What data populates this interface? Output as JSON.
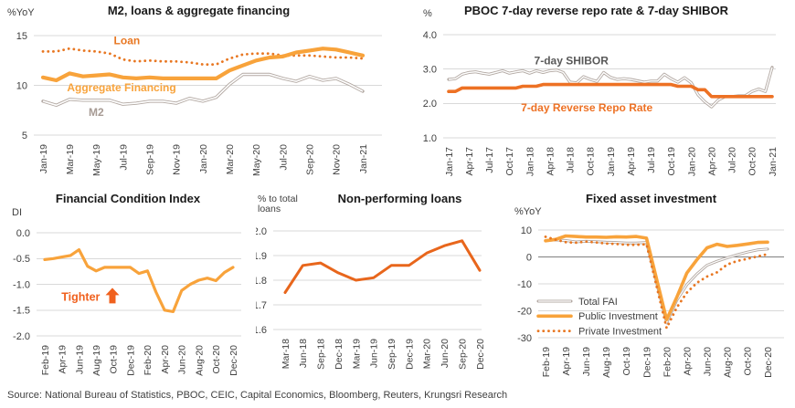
{
  "source": "Source: National Bureau of Statistics, PBOC, CEIC, Capital Economics, Bloomberg, Reuters, Krungsri Research",
  "colors": {
    "amber": "#F8A33B",
    "dark_orange": "#E87722",
    "npl_orange": "#E8661C",
    "repo_orange": "#ED7124",
    "tighter_orange": "#F0611E",
    "gray_line": "#B2A8A2",
    "grid": "#D9D9D9",
    "zero_line": "#808080",
    "tick_text": "#404040",
    "title_text": "#1A1A1A"
  },
  "chart_data": [
    {
      "id": "m2-loans-aggregate-financing",
      "type": "line",
      "title": "M2, loans & aggregate financing",
      "unit": "%YoY",
      "ylim": [
        5,
        15
      ],
      "y_ticks": [
        [
          15,
          "15"
        ],
        [
          10,
          "10"
        ],
        [
          5,
          "5"
        ]
      ],
      "label_every": 2,
      "categories": [
        "Jan-19",
        "Feb-19",
        "Mar-19",
        "Apr-19",
        "May-19",
        "Jun-19",
        "Jul-19",
        "Aug-19",
        "Sep-19",
        "Oct-19",
        "Nov-19",
        "Dec-19",
        "Jan-20",
        "Feb-20",
        "Mar-20",
        "Apr-20",
        "May-20",
        "Jun-20",
        "Jul-20",
        "Aug-20",
        "Sep-20",
        "Oct-20",
        "Nov-20",
        "Dec-20",
        "Jan-21"
      ],
      "series": [
        {
          "name": "Loan",
          "style": "dotted",
          "color": "#E87722",
          "width": 2.8,
          "values": [
            13.4,
            13.4,
            13.7,
            13.5,
            13.4,
            13.2,
            12.6,
            12.4,
            12.5,
            12.4,
            12.4,
            12.3,
            12.1,
            12.1,
            12.7,
            13.1,
            13.2,
            13.2,
            13.0,
            13.0,
            13.0,
            12.9,
            12.8,
            12.8,
            12.7
          ]
        },
        {
          "name": "Aggregate Financing",
          "style": "solid",
          "color": "#F8A33B",
          "width": 4.2,
          "values": [
            10.8,
            10.5,
            11.2,
            10.9,
            11.0,
            11.1,
            10.8,
            10.7,
            10.8,
            10.7,
            10.7,
            10.7,
            10.7,
            10.7,
            11.5,
            12.0,
            12.5,
            12.8,
            12.9,
            13.3,
            13.5,
            13.7,
            13.6,
            13.3,
            13.0
          ]
        },
        {
          "name": "M2",
          "style": "double",
          "color": "#B2A8A2",
          "width": 3.4,
          "values": [
            8.4,
            8.0,
            8.6,
            8.5,
            8.5,
            8.5,
            8.1,
            8.2,
            8.4,
            8.4,
            8.2,
            8.7,
            8.4,
            8.8,
            10.1,
            11.1,
            11.1,
            11.1,
            10.7,
            10.4,
            10.9,
            10.5,
            10.7,
            10.1,
            9.4
          ]
        }
      ],
      "annotations": [
        {
          "text": "Loan",
          "color": "#E87722",
          "x": 6.3,
          "y": 14.5,
          "size": 12
        },
        {
          "text": "Aggregate Financing",
          "color": "#F8A33B",
          "x": 5.9,
          "y": 9.75,
          "size": 12
        },
        {
          "text": "M2",
          "color": "#A79B94",
          "x": 4.0,
          "y": 7.3,
          "size": 12
        }
      ]
    },
    {
      "id": "pboc-repo-shibor",
      "type": "line",
      "title": "PBOC 7-day reverse repo rate & 7-day SHIBOR",
      "unit": "%",
      "ylim": [
        1.0,
        4.0
      ],
      "y_ticks": [
        [
          4.0,
          "4.0"
        ],
        [
          3.0,
          "3.0"
        ],
        [
          2.0,
          "2.0"
        ],
        [
          1.0,
          "1.0"
        ]
      ],
      "label_every": 3,
      "categories": [
        "Jan-17",
        "Feb-17",
        "Mar-17",
        "Apr-17",
        "May-17",
        "Jun-17",
        "Jul-17",
        "Aug-17",
        "Sep-17",
        "Oct-17",
        "Nov-17",
        "Dec-17",
        "Jan-18",
        "Feb-18",
        "Mar-18",
        "Apr-18",
        "May-18",
        "Jun-18",
        "Jul-18",
        "Aug-18",
        "Sep-18",
        "Oct-18",
        "Nov-18",
        "Dec-18",
        "Jan-19",
        "Feb-19",
        "Mar-19",
        "Apr-19",
        "May-19",
        "Jun-19",
        "Jul-19",
        "Aug-19",
        "Sep-19",
        "Oct-19",
        "Nov-19",
        "Dec-19",
        "Jan-20",
        "Feb-20",
        "Mar-20",
        "Apr-20",
        "May-20",
        "Jun-20",
        "Jul-20",
        "Aug-20",
        "Sep-20",
        "Oct-20",
        "Nov-20",
        "Dec-20",
        "Jan-21"
      ],
      "series": [
        {
          "name": "7-day SHIBOR",
          "style": "double",
          "color": "#B2A8A2",
          "width": 3.2,
          "values": [
            2.7,
            2.72,
            2.85,
            2.9,
            2.92,
            2.88,
            2.85,
            2.9,
            2.95,
            2.88,
            2.92,
            2.95,
            2.88,
            2.95,
            2.9,
            2.95,
            2.97,
            2.9,
            2.62,
            2.6,
            2.78,
            2.7,
            2.64,
            2.9,
            2.76,
            2.7,
            2.72,
            2.7,
            2.66,
            2.62,
            2.65,
            2.65,
            2.85,
            2.72,
            2.62,
            2.75,
            2.6,
            2.25,
            2.05,
            1.9,
            2.1,
            2.2,
            2.2,
            2.22,
            2.22,
            2.35,
            2.42,
            2.35,
            3.05
          ]
        },
        {
          "name": "7-day Reverse Repo Rate",
          "style": "solid",
          "color": "#ED7124",
          "width": 3.6,
          "values": [
            2.35,
            2.35,
            2.45,
            2.45,
            2.45,
            2.45,
            2.45,
            2.45,
            2.45,
            2.45,
            2.45,
            2.5,
            2.5,
            2.5,
            2.55,
            2.55,
            2.55,
            2.55,
            2.55,
            2.55,
            2.55,
            2.55,
            2.55,
            2.55,
            2.55,
            2.55,
            2.55,
            2.55,
            2.55,
            2.55,
            2.55,
            2.55,
            2.55,
            2.55,
            2.5,
            2.5,
            2.5,
            2.4,
            2.4,
            2.2,
            2.2,
            2.2,
            2.2,
            2.2,
            2.2,
            2.2,
            2.2,
            2.2,
            2.2
          ]
        }
      ],
      "annotations": [
        {
          "text": "7-day SHIBOR",
          "color": "#595959",
          "x": 18.2,
          "y": 3.25,
          "size": 12
        },
        {
          "text": "7-day Reverse Repo Rate",
          "color": "#ED7124",
          "x": 20.5,
          "y": 1.88,
          "size": 12
        }
      ]
    },
    {
      "id": "financial-condition-index",
      "type": "line",
      "title": "Financial Condition Index",
      "unit": "DI",
      "ylim": [
        -2.0,
        0.0
      ],
      "y_ticks": [
        [
          0.0,
          "0.0"
        ],
        [
          -0.5,
          "-0.5"
        ],
        [
          -1.0,
          "-1.0"
        ],
        [
          -1.5,
          "-1.5"
        ],
        [
          -2.0,
          "-2.0"
        ]
      ],
      "label_every": 2,
      "categories": [
        "Feb-19",
        "Mar-19",
        "Apr-19",
        "May-19",
        "Jun-19",
        "Jul-19",
        "Aug-19",
        "Sep-19",
        "Oct-19",
        "Nov-19",
        "Dec-19",
        "Jan-20",
        "Feb-20",
        "Mar-20",
        "Apr-20",
        "May-20",
        "Jun-20",
        "Jul-20",
        "Aug-20",
        "Sep-20",
        "Oct-20",
        "Nov-20",
        "Dec-20"
      ],
      "series": [
        {
          "name": "Financial Condition Index",
          "style": "solid",
          "color": "#F8A33B",
          "width": 3.2,
          "values": [
            -0.52,
            -0.5,
            -0.47,
            -0.44,
            -0.33,
            -0.65,
            -0.74,
            -0.67,
            -0.67,
            -0.67,
            -0.67,
            -0.79,
            -0.74,
            -1.15,
            -1.5,
            -1.53,
            -1.12,
            -1.0,
            -0.92,
            -0.88,
            -0.93,
            -0.77,
            -0.67
          ]
        }
      ],
      "annotations": [
        {
          "text": "Tighter",
          "color": "#F0611E",
          "x": 4.2,
          "y": -1.25,
          "size": 12.5
        },
        {
          "shape": "up-arrow",
          "color": "#F0611E",
          "x": 7.9,
          "y": -1.22
        }
      ]
    },
    {
      "id": "non-performing-loans",
      "type": "line",
      "title": "Non-performing loans",
      "unit": "% to total\nloans",
      "ylim": [
        1.6,
        2.0
      ],
      "y_ticks": [
        [
          2.0,
          "2.0"
        ],
        [
          1.9,
          "1.9"
        ],
        [
          1.8,
          "1.8"
        ],
        [
          1.7,
          "1.7"
        ],
        [
          1.6,
          "1.6"
        ]
      ],
      "label_every": 1,
      "categories": [
        "Mar-18",
        "Jun-18",
        "Sep-18",
        "Dec-18",
        "Mar-19",
        "Jun-19",
        "Sep-19",
        "Dec-19",
        "Mar-20",
        "Jun-20",
        "Sep-20",
        "Dec-20"
      ],
      "series": [
        {
          "name": "Non-performing loans",
          "style": "solid",
          "color": "#E8661C",
          "width": 3.0,
          "values": [
            1.75,
            1.86,
            1.87,
            1.83,
            1.8,
            1.81,
            1.86,
            1.86,
            1.91,
            1.94,
            1.96,
            1.84
          ]
        }
      ],
      "annotations": []
    },
    {
      "id": "fixed-asset-investment",
      "type": "line",
      "title": "Fixed asset investment",
      "unit": "%YoY",
      "ylim": [
        -30,
        10
      ],
      "y_ticks": [
        [
          10,
          "10"
        ],
        [
          0,
          "0"
        ],
        [
          -10,
          "-10"
        ],
        [
          -20,
          "-20"
        ],
        [
          -30,
          "-30"
        ]
      ],
      "zero_dark": true,
      "label_every": 2,
      "legend_position": "inside-left",
      "categories": [
        "Feb-19",
        "Mar-19",
        "Apr-19",
        "May-19",
        "Jun-19",
        "Jul-19",
        "Aug-19",
        "Sep-19",
        "Oct-19",
        "Nov-19",
        "Dec-19",
        "Jan-20",
        "Feb-20",
        "Mar-20",
        "Apr-20",
        "May-20",
        "Jun-20",
        "Jul-20",
        "Aug-20",
        "Sep-20",
        "Oct-20",
        "Nov-20",
        "Dec-20"
      ],
      "series": [
        {
          "name": "Total FAI",
          "style": "double",
          "color": "#B2A8A2",
          "width": 3.0,
          "values": [
            6.1,
            6.3,
            6.1,
            5.6,
            5.8,
            5.7,
            5.5,
            5.4,
            5.2,
            5.2,
            5.4,
            null,
            -24.5,
            -16.1,
            -10.3,
            -6.3,
            -3.1,
            -1.6,
            -0.3,
            0.8,
            1.8,
            2.6,
            2.9
          ]
        },
        {
          "name": "Public Investment",
          "style": "solid",
          "color": "#F8A33B",
          "width": 3.6,
          "values": [
            6.0,
            6.5,
            7.8,
            7.6,
            7.4,
            7.4,
            7.3,
            7.5,
            7.4,
            7.6,
            7.0,
            null,
            -23.3,
            -15.0,
            -6.0,
            -1.0,
            3.4,
            4.7,
            3.9,
            4.3,
            4.8,
            5.4,
            5.5
          ]
        },
        {
          "name": "Private Investment",
          "style": "dotted",
          "color": "#E87722",
          "width": 2.8,
          "values": [
            7.5,
            6.4,
            5.5,
            5.3,
            5.7,
            5.4,
            5.0,
            4.8,
            4.5,
            4.5,
            4.7,
            null,
            -26.4,
            -18.8,
            -13.3,
            -9.6,
            -7.3,
            -5.7,
            -2.8,
            -1.5,
            -0.7,
            0.2,
            1.0
          ]
        }
      ],
      "annotations": []
    }
  ]
}
